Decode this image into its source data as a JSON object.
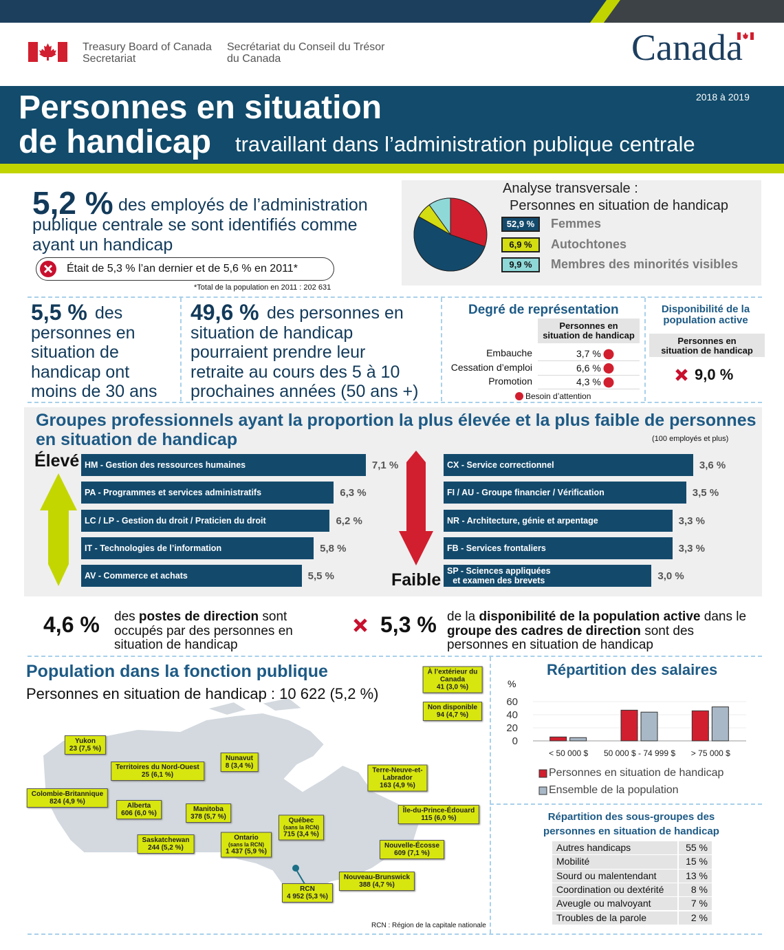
{
  "header": {
    "dept_en": [
      "Treasury Board of Canada",
      "Secretariat"
    ],
    "dept_fr": [
      "Secrétariat du Conseil du Trésor",
      "du Canada"
    ],
    "wordmark": "Canada"
  },
  "banner": {
    "title": [
      "Personnes en situation",
      "de handicap"
    ],
    "subtitle": "travaillant dans l’administration publique centrale",
    "period": "2018 à 2019"
  },
  "headline": {
    "value": "5,2 %",
    "lines": [
      "des employés de l’administration",
      "publique centrale se sont identifiés comme",
      "ayant un handicap"
    ],
    "note": "Était de 5,3 % l’an dernier et de 5,6 % en 2011*",
    "footnote": "*Total de la population en 2011 : 202 631"
  },
  "age_stat": {
    "value": "5,5 %",
    "lines": [
      "des",
      "personnes en",
      "situation de",
      "handicap ont",
      "moins de 30 ans"
    ]
  },
  "retirement_stat": {
    "value": "49,6 %",
    "lines": [
      "des personnes en",
      "situation de handicap",
      "pourraient prendre leur",
      "retraite au cours des 5 à 10",
      "prochaines années (50 ans +)"
    ]
  },
  "representation": {
    "title": "Degré de représentation",
    "column": [
      "Personnes en",
      "situation de handicap"
    ],
    "rows": [
      {
        "label": "Embauche",
        "value": "3,7 %"
      },
      {
        "label": "Cessation d’emploi",
        "value": "6,6 %"
      },
      {
        "label": "Promotion",
        "value": "4,3 %"
      }
    ],
    "legend": "Besoin d’attention"
  },
  "availability": {
    "title": [
      "Disponibilité de la",
      "population active"
    ],
    "column": [
      "Personnes en",
      "situation de handicap"
    ],
    "value": "9,0 %"
  },
  "groups": {
    "title": [
      "Groupes professionnels ayant la proportion la plus élevée et la plus faible de personnes",
      "en situation de handicap"
    ],
    "note": "(100 employés et plus)",
    "high": "Élevé",
    "low": "Faible"
  },
  "executives": [
    {
      "value": "4,6 %",
      "lines": [
        [
          {
            "text": "des "
          },
          {
            "text": "postes de direction",
            "bold": true
          },
          {
            "text": " sont"
          }
        ],
        [
          {
            "text": "occupés par des personnes en"
          }
        ],
        [
          {
            "text": "situation de handicap"
          }
        ]
      ]
    },
    {
      "value": "5,3 %",
      "lines": [
        [
          {
            "text": "de la "
          },
          {
            "text": "disponibilité de la population active",
            "bold": true
          },
          {
            "text": " dans le"
          }
        ],
        [
          {
            "text": "groupe des cadres de direction",
            "bold": true
          },
          {
            "text": " sont des"
          }
        ],
        [
          {
            "text": "personnes en situation de handicap"
          }
        ]
      ]
    }
  ],
  "population": {
    "title": "Population dans la fonction publique",
    "subtitle": "Personnes en situation de handicap : 10 622 (5,2 %)",
    "regions": [
      {
        "name": [
          "À l’extérieur du",
          "Canada"
        ],
        "value": "41 (3,0 %)"
      },
      {
        "name": [
          "Non disponible"
        ],
        "value": "94 (4,7 %)"
      },
      {
        "name": [
          "Yukon"
        ],
        "value": "23 (7,5 %)"
      },
      {
        "name": [
          "Nunavut"
        ],
        "value": "8 (3,4 %)"
      },
      {
        "name": [
          "Territoires du Nord-Ouest"
        ],
        "value": "25 (6,1 %)"
      },
      {
        "name": [
          "Terre-Neuve-et-",
          "Labrador"
        ],
        "value": "163 (4,9 %)"
      },
      {
        "name": [
          "Colombie-Britannique"
        ],
        "value": "824 (4,9 %)"
      },
      {
        "name": [
          "Alberta"
        ],
        "value": "606 (6,0 %)"
      },
      {
        "name": [
          "Manitoba"
        ],
        "value": "378 (5,7 %)"
      },
      {
        "name": [
          "Île-du-Prince-Édouard"
        ],
        "value": "115 (6,0 %)"
      },
      {
        "name": [
          "Québec"
        ],
        "note": "(sans la RCN)",
        "value": "715 (3,4 %)"
      },
      {
        "name": [
          "Saskatchewan"
        ],
        "value": "244 (5,2 %)"
      },
      {
        "name": [
          "Ontario"
        ],
        "note": "(sans la RCN)",
        "value": "1 437 (5,9 %)"
      },
      {
        "name": [
          "Nouvelle-Écosse"
        ],
        "value": "609 (7,1 %)"
      },
      {
        "name": [
          "Nouveau-Brunswick"
        ],
        "value": "388 (4,7 %)"
      },
      {
        "name": [
          "RCN"
        ],
        "value": "4 952 (5,3 %)"
      }
    ],
    "footnote": "RCN : Région de la capitale nationale"
  },
  "subgroups": {
    "title": [
      "Répartition des sous-groupes des",
      "personnes en situation de handicap"
    ],
    "rows": [
      [
        "Autres handicaps",
        "55 %"
      ],
      [
        "Mobilité",
        "15 %"
      ],
      [
        "Sourd ou malentendant",
        "13 %"
      ],
      [
        "Coordination ou dextérité",
        "8 %"
      ],
      [
        "Aveugle ou malvoyant",
        "7 %"
      ],
      [
        "Troubles de la parole",
        "2 %"
      ]
    ]
  },
  "chart_data": [
    {
      "type": "pie",
      "title": "Analyse transversale :",
      "subtitle": "Personnes en situation de handicap",
      "categories": [
        "Femmes",
        "Autochtones",
        "Membres des minorités visibles"
      ],
      "values": [
        52.9,
        6.9,
        9.9
      ],
      "value_labels": [
        "52,9 %",
        "6,9 %",
        "9,9 %"
      ],
      "colors": [
        "#134a6c",
        "#d4dc12",
        "#8fd8d8"
      ]
    },
    {
      "type": "bar",
      "orientation": "horizontal",
      "categories": [
        "HM - Gestion des ressources humaines",
        "PA - Programmes et services administratifs",
        "LC / LP - Gestion du droit / Praticien du droit",
        "IT - Technologies de l’information",
        "AV - Commerce et achats"
      ],
      "values": [
        7.1,
        6.3,
        6.2,
        5.8,
        5.5
      ],
      "value_labels": [
        "7,1 %",
        "6,3 %",
        "6,2 %",
        "5,8 %",
        "5,5 %"
      ],
      "color": "#134a6c"
    },
    {
      "type": "bar",
      "orientation": "horizontal",
      "categories": [
        "CX - Service correctionnel",
        "FI / AU - Groupe financier / Vérification",
        "NR - Architecture, génie et arpentage",
        "FB - Services frontaliers",
        "SP - Sciences appliquées\net examen des brevets"
      ],
      "values": [
        3.6,
        3.5,
        3.3,
        3.3,
        3.0
      ],
      "value_labels": [
        "3,6 %",
        "3,5 %",
        "3,3 %",
        "3,3 %",
        "3,0 %"
      ],
      "color": "#134a6c"
    },
    {
      "type": "bar",
      "title": "Répartition des salaires",
      "y_label": "%",
      "categories": [
        "< 50 000 $",
        "50 000 $ - 74 999 $",
        "> 75 000 $"
      ],
      "series": [
        {
          "name": "Personnes en situation de handicap",
          "color": "#d11f2f",
          "values": [
            6,
            47,
            46
          ]
        },
        {
          "name": "Ensemble de la population",
          "color": "#a9b8c6",
          "values": [
            5,
            44,
            52
          ]
        }
      ],
      "ylim": [
        0,
        60
      ],
      "yticks": [
        0,
        20,
        40,
        60
      ]
    }
  ]
}
